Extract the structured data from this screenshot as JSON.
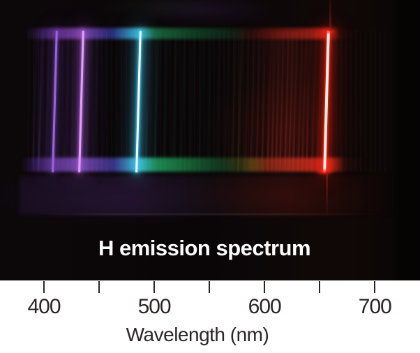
{
  "chart_data": {
    "type": "spectrum",
    "title": "H emission spectrum",
    "xlabel": "Wavelength (nm)",
    "x_unit": "nm",
    "x_major_ticks": [
      400,
      500,
      600,
      700
    ],
    "x_minor_ticks": [
      450,
      550,
      650
    ],
    "xlim_nm": [
      360,
      741
    ],
    "colors": {
      "background": "#ffffff",
      "photo_background": "#0b0709",
      "axis_text": "#2b2526",
      "title_text": "#fdfdfd"
    },
    "lines": [
      {
        "nm": 410,
        "width": 3,
        "core": "#9a63d6",
        "glow": "#7a4ac2",
        "intensity": 0.55
      },
      {
        "nm": 434,
        "width": 3,
        "core": "#dda2f2",
        "glow": "#b464e6",
        "intensity": 0.8
      },
      {
        "nm": 486,
        "width": 3,
        "core": "#f4feff",
        "glow": "#3fc8ee",
        "intensity": 1.0
      },
      {
        "nm": 656,
        "width": 4,
        "core": "#fff2e4",
        "glow": "#ff2414",
        "intensity": 1.0,
        "caps": true
      }
    ],
    "faint_lines": [
      {
        "nm": 392,
        "color": "#6a3fa8",
        "opacity": 0.2
      },
      {
        "nm": 397,
        "color": "#7b4cc0",
        "opacity": 0.3
      },
      {
        "nm": 403,
        "color": "#6a40aa",
        "opacity": 0.16
      },
      {
        "nm": 420,
        "color": "#5b40b2",
        "opacity": 0.12
      },
      {
        "nm": 426,
        "color": "#4d3caa",
        "opacity": 0.1
      },
      {
        "nm": 440,
        "color": "#4a4cc0",
        "opacity": 0.15
      },
      {
        "nm": 447,
        "color": "#424ab4",
        "opacity": 0.1
      },
      {
        "nm": 455,
        "color": "#3a46a8",
        "opacity": 0.08
      },
      {
        "nm": 494,
        "color": "#30a882",
        "opacity": 0.12
      },
      {
        "nm": 502,
        "color": "#2a9a66",
        "opacity": 0.13
      },
      {
        "nm": 510,
        "color": "#268c52",
        "opacity": 0.11
      },
      {
        "nm": 518,
        "color": "#228448",
        "opacity": 0.12
      },
      {
        "nm": 526,
        "color": "#1f7a40",
        "opacity": 0.1
      },
      {
        "nm": 534,
        "color": "#1c7038",
        "opacity": 0.09
      },
      {
        "nm": 542,
        "color": "#1a6834",
        "opacity": 0.1
      },
      {
        "nm": 550,
        "color": "#186030",
        "opacity": 0.08
      },
      {
        "nm": 558,
        "color": "#275620",
        "opacity": 0.08
      },
      {
        "nm": 566,
        "color": "#573f1c",
        "opacity": 0.1
      },
      {
        "nm": 572,
        "color": "#8c5a20",
        "opacity": 0.14
      },
      {
        "nm": 578,
        "color": "#a5791e",
        "opacity": 0.17
      },
      {
        "nm": 584,
        "color": "#a33a1c",
        "opacity": 0.18
      },
      {
        "nm": 589,
        "color": "#b03420",
        "opacity": 0.22
      },
      {
        "nm": 594,
        "color": "#ba3220",
        "opacity": 0.25
      },
      {
        "nm": 599,
        "color": "#c23220",
        "opacity": 0.28
      },
      {
        "nm": 604,
        "color": "#c83222",
        "opacity": 0.32
      },
      {
        "nm": 608,
        "color": "#cc3422",
        "opacity": 0.35
      },
      {
        "nm": 612,
        "color": "#d23422",
        "opacity": 0.38
      },
      {
        "nm": 616,
        "color": "#d63623",
        "opacity": 0.4
      },
      {
        "nm": 620,
        "color": "#da3623",
        "opacity": 0.42
      },
      {
        "nm": 624,
        "color": "#dc3724",
        "opacity": 0.4
      },
      {
        "nm": 628,
        "color": "#e03724",
        "opacity": 0.37
      },
      {
        "nm": 632,
        "color": "#e23824",
        "opacity": 0.34
      },
      {
        "nm": 636,
        "color": "#e43825",
        "opacity": 0.3
      },
      {
        "nm": 640,
        "color": "#e63925",
        "opacity": 0.26
      },
      {
        "nm": 645,
        "color": "#e83925",
        "opacity": 0.21
      },
      {
        "nm": 650,
        "color": "#ea3a26",
        "opacity": 0.16
      }
    ]
  }
}
